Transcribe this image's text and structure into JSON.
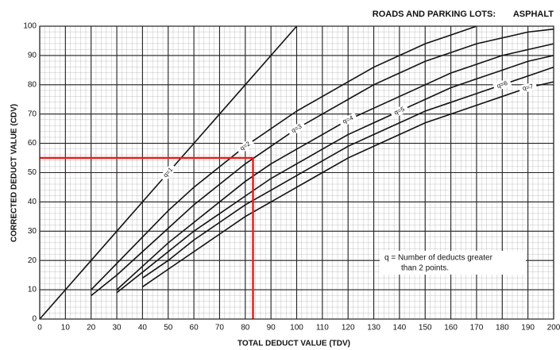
{
  "chart_data": {
    "type": "line",
    "title": "ROADS AND PARKING LOTS:",
    "subtitle": "ASPHALT",
    "x_label": "TOTAL DEDUCT VALUE (TDV)",
    "y_label": "CORRECTED DEDUCT VALUE (CDV)",
    "note": [
      "q = Number of deducts greater",
      "than 2 points."
    ],
    "x": [
      0,
      10,
      20,
      30,
      40,
      50,
      60,
      70,
      80,
      90,
      100,
      110,
      120,
      130,
      140,
      150,
      160,
      170,
      180,
      190,
      200
    ],
    "series": [
      {
        "name": "q=1",
        "color": "#111",
        "values": [
          0,
          10,
          20,
          30,
          40,
          50,
          60,
          70,
          80,
          90,
          100,
          null,
          null,
          null,
          null,
          null,
          null,
          null,
          null,
          null,
          null
        ]
      },
      {
        "name": "q=2",
        "color": "#111",
        "values": [
          null,
          null,
          10,
          19,
          28,
          37,
          45,
          52,
          59,
          65,
          71,
          76,
          81,
          86,
          90,
          94,
          97,
          100,
          null,
          null,
          null
        ]
      },
      {
        "name": "q=3",
        "color": "#111",
        "values": [
          null,
          null,
          8,
          15,
          23,
          31,
          39,
          46,
          53,
          59,
          65,
          70,
          75,
          80,
          84,
          88,
          91,
          94,
          96,
          98,
          99
        ]
      },
      {
        "name": "q=4",
        "color": "#111",
        "values": [
          null,
          null,
          null,
          10,
          18,
          26,
          33,
          40,
          47,
          53,
          58,
          63,
          68,
          72,
          76,
          80,
          84,
          87,
          90,
          92,
          94
        ]
      },
      {
        "name": "q=5",
        "color": "#111",
        "values": [
          null,
          null,
          null,
          9,
          16,
          23,
          30,
          36,
          42,
          48,
          53,
          58,
          63,
          67,
          71,
          75,
          79,
          82,
          85,
          88,
          90
        ]
      },
      {
        "name": "q=6",
        "color": "#111",
        "values": [
          null,
          null,
          null,
          null,
          14,
          20,
          27,
          33,
          39,
          44,
          49,
          54,
          59,
          63,
          67,
          71,
          74,
          77,
          80,
          83,
          86
        ]
      },
      {
        "name": "q=7",
        "color": "#111",
        "values": [
          null,
          null,
          null,
          null,
          11,
          17,
          23,
          29,
          35,
          40,
          45,
          50,
          55,
          59,
          63,
          67,
          70,
          73,
          76,
          79,
          81
        ]
      }
    ],
    "reference": {
      "x": 83,
      "y": 55,
      "color": "#e8201a"
    },
    "xlim": [
      0,
      200
    ],
    "ylim": [
      0,
      100
    ],
    "xticks": [
      0,
      10,
      20,
      30,
      40,
      50,
      60,
      70,
      80,
      90,
      100,
      110,
      120,
      130,
      140,
      150,
      160,
      170,
      180,
      190,
      200
    ],
    "yticks": [
      0,
      10,
      20,
      30,
      40,
      50,
      60,
      70,
      80,
      90,
      100
    ],
    "grid": true
  }
}
